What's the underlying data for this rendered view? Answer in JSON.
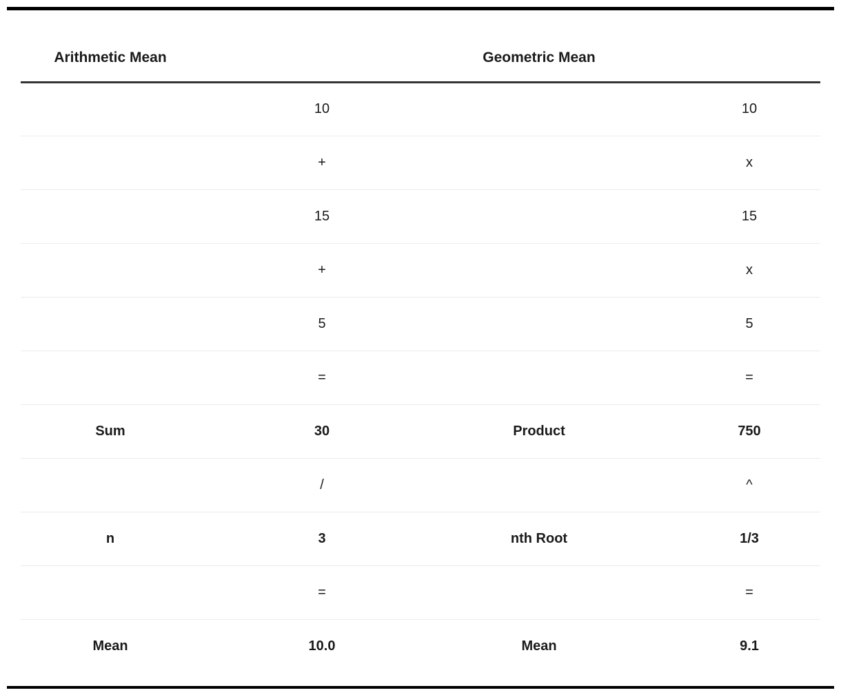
{
  "colors": {
    "text-color": "#1a1a1a",
    "frame-color": "#000000",
    "header-rule-color": "#333333",
    "row-separator-color": "#ebebeb",
    "background-color": "#ffffff"
  },
  "table": {
    "headers": [
      {
        "label": "Arithmetic Mean"
      },
      {
        "label": ""
      },
      {
        "label": "Geometric Mean"
      },
      {
        "label": ""
      }
    ],
    "rows": [
      {
        "bold": false,
        "cells": [
          "",
          "10",
          "",
          "10"
        ]
      },
      {
        "bold": false,
        "cells": [
          "",
          "+",
          "",
          "x"
        ]
      },
      {
        "bold": false,
        "cells": [
          "",
          "15",
          "",
          "15"
        ]
      },
      {
        "bold": false,
        "cells": [
          "",
          "+",
          "",
          "x"
        ]
      },
      {
        "bold": false,
        "cells": [
          "",
          "5",
          "",
          "5"
        ]
      },
      {
        "bold": false,
        "cells": [
          "",
          "=",
          "",
          "="
        ]
      },
      {
        "bold": true,
        "cells": [
          "Sum",
          "30",
          "Product",
          "750"
        ]
      },
      {
        "bold": false,
        "cells": [
          "",
          "/",
          "",
          "^"
        ]
      },
      {
        "bold": true,
        "cells": [
          "n",
          "3",
          "nth Root",
          "1/3"
        ]
      },
      {
        "bold": false,
        "cells": [
          "",
          "=",
          "",
          "="
        ]
      },
      {
        "bold": true,
        "cells": [
          "Mean",
          "10.0",
          "Mean",
          "9.1"
        ]
      }
    ]
  },
  "chart_data": {
    "type": "table",
    "columns": [
      "Arithmetic Mean",
      "",
      "Geometric Mean",
      ""
    ],
    "rows": [
      [
        "",
        "10",
        "",
        "10"
      ],
      [
        "",
        "+",
        "",
        "x"
      ],
      [
        "",
        "15",
        "",
        "15"
      ],
      [
        "",
        "+",
        "",
        "x"
      ],
      [
        "",
        "5",
        "",
        "5"
      ],
      [
        "",
        "=",
        "",
        "="
      ],
      [
        "Sum",
        "30",
        "Product",
        "750"
      ],
      [
        "",
        "/",
        "",
        "^"
      ],
      [
        "n",
        "3",
        "nth Root",
        "1/3"
      ],
      [
        "",
        "=",
        "",
        "="
      ],
      [
        "Mean",
        "10.0",
        "Mean",
        "9.1"
      ]
    ],
    "arithmetic_mean": {
      "values": [
        10,
        15,
        5
      ],
      "sum": 30,
      "n": 3,
      "mean": 10.0
    },
    "geometric_mean": {
      "values": [
        10,
        15,
        5
      ],
      "product": 750,
      "nth_root": "1/3",
      "mean": 9.1
    }
  }
}
